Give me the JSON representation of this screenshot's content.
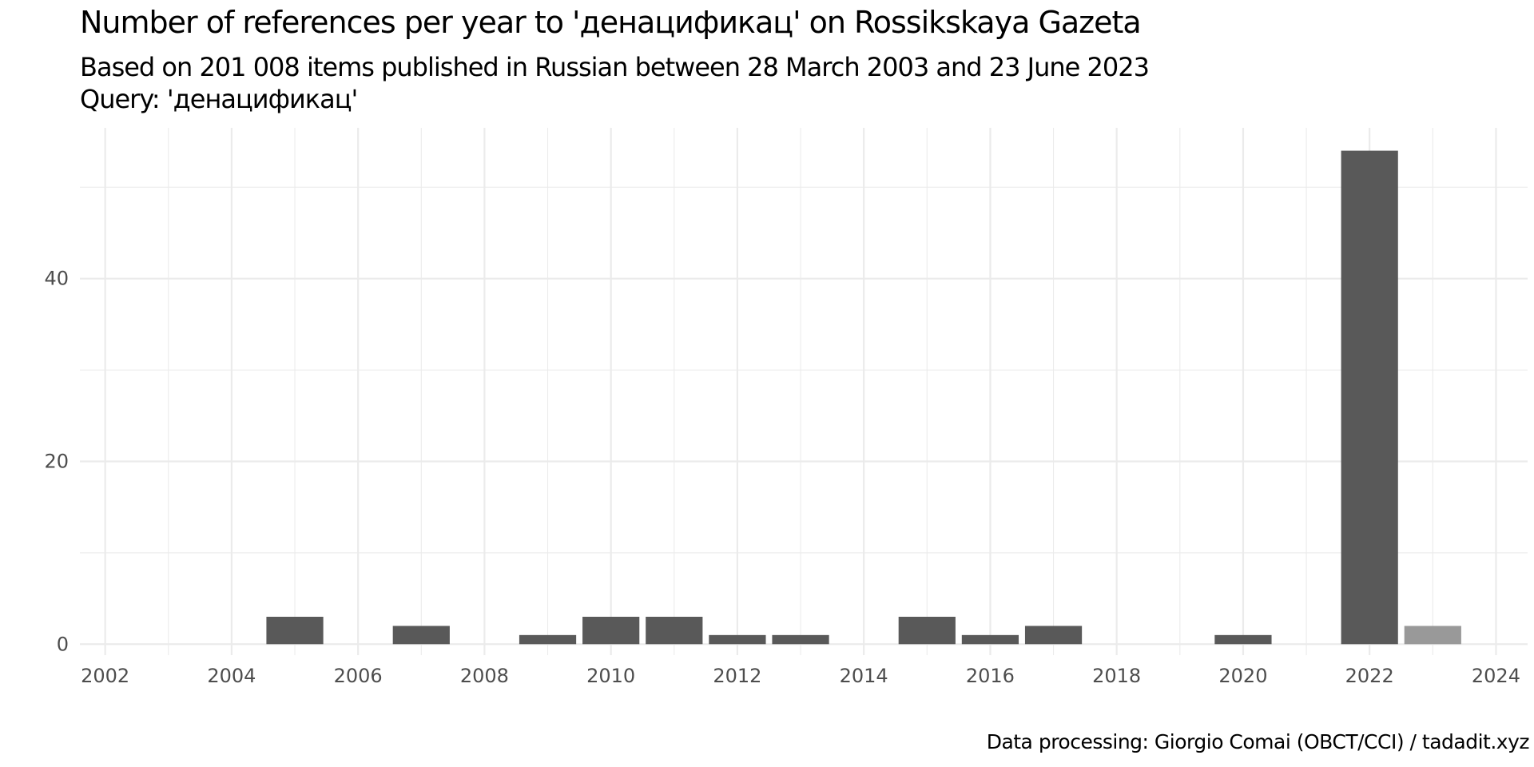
{
  "chart_data": {
    "type": "bar",
    "title": "Number of references per year to 'денацификац' on Rossikskaya Gazeta",
    "subtitle": [
      "Based on 201 008 items published in Russian between 28 March 2003 and 23 June 2023",
      "Query: 'денацификац'"
    ],
    "caption": "Data processing: Giorgio Comai (OBCT/CCI) / tadadit.xyz",
    "xlabel": "",
    "ylabel": "",
    "xlim": [
      2001.6,
      2024.5
    ],
    "ylim": [
      -1.2,
      56.5
    ],
    "x_ticks": [
      "2002",
      "2004",
      "2006",
      "2008",
      "2010",
      "2012",
      "2014",
      "2016",
      "2018",
      "2020",
      "2022",
      "2024"
    ],
    "y_ticks": [
      "0",
      "20",
      "40"
    ],
    "grid": true,
    "legend": "none",
    "colors": {
      "bar": "#595959",
      "bar_partial_year": "#999999",
      "grid": "#ebebeb",
      "tick_text": "#4d4d4d"
    },
    "x": [
      2003,
      2004,
      2005,
      2006,
      2007,
      2008,
      2009,
      2010,
      2011,
      2012,
      2013,
      2014,
      2015,
      2016,
      2017,
      2018,
      2019,
      2020,
      2021,
      2022,
      2023
    ],
    "values": [
      0,
      0,
      3,
      0,
      2,
      0,
      1,
      3,
      3,
      1,
      1,
      0,
      3,
      1,
      2,
      0,
      0,
      1,
      0,
      54,
      2
    ],
    "partial_year": [
      false,
      false,
      false,
      false,
      false,
      false,
      false,
      false,
      false,
      false,
      false,
      false,
      false,
      false,
      false,
      false,
      false,
      false,
      false,
      false,
      true
    ]
  }
}
